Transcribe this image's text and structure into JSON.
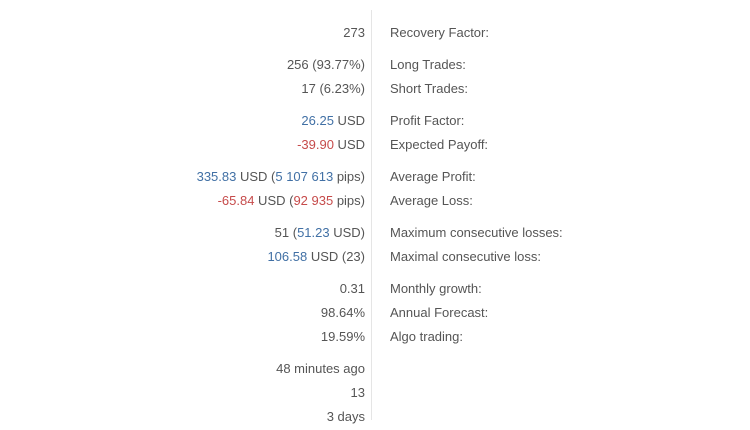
{
  "colors": {
    "text": "#555555",
    "positive": "#4170a5",
    "negative": "#c64b4b",
    "divider": "#e5e5e5",
    "background": "#ffffff"
  },
  "stats": {
    "groups": [
      {
        "rows": [
          {
            "label": "Recovery Factor:",
            "value_parts": [
              {
                "text": "273",
                "tone": "default"
              }
            ]
          }
        ]
      },
      {
        "rows": [
          {
            "label": "Long Trades:",
            "value_parts": [
              {
                "text": "256 (93.77%)",
                "tone": "default"
              }
            ]
          },
          {
            "label": "Short Trades:",
            "value_parts": [
              {
                "text": "17 (6.23%)",
                "tone": "default"
              }
            ]
          }
        ]
      },
      {
        "rows": [
          {
            "label": "Profit Factor:",
            "value_parts": [
              {
                "text": "26.25",
                "tone": "positive"
              },
              {
                "text": " USD",
                "tone": "default"
              }
            ]
          },
          {
            "label": "Expected Payoff:",
            "value_parts": [
              {
                "text": "-39.90",
                "tone": "negative"
              },
              {
                "text": " USD",
                "tone": "default"
              }
            ]
          }
        ]
      },
      {
        "rows": [
          {
            "label": "Average Profit:",
            "value_parts": [
              {
                "text": "335.83",
                "tone": "positive"
              },
              {
                "text": " USD (",
                "tone": "default"
              },
              {
                "text": "5 107 613",
                "tone": "positive"
              },
              {
                "text": " pips)",
                "tone": "default"
              }
            ]
          },
          {
            "label": "Average Loss:",
            "value_parts": [
              {
                "text": "-65.84",
                "tone": "negative"
              },
              {
                "text": " USD (",
                "tone": "default"
              },
              {
                "text": "92 935",
                "tone": "negative"
              },
              {
                "text": " pips)",
                "tone": "default"
              }
            ]
          }
        ]
      },
      {
        "rows": [
          {
            "label": "Maximum consecutive losses:",
            "value_parts": [
              {
                "text": "51 (",
                "tone": "default"
              },
              {
                "text": "51.23",
                "tone": "positive"
              },
              {
                "text": " USD)",
                "tone": "default"
              }
            ]
          },
          {
            "label": "Maximal consecutive loss:",
            "value_parts": [
              {
                "text": "106.58",
                "tone": "positive"
              },
              {
                "text": " USD (23)",
                "tone": "default"
              }
            ]
          }
        ]
      },
      {
        "rows": [
          {
            "label": "Monthly growth:",
            "value_parts": [
              {
                "text": "0.31",
                "tone": "default"
              }
            ]
          },
          {
            "label": "Annual Forecast:",
            "value_parts": [
              {
                "text": "98.64%",
                "tone": "default"
              }
            ]
          },
          {
            "label": "Algo trading:",
            "value_parts": [
              {
                "text": "19.59%",
                "tone": "default"
              }
            ]
          }
        ]
      },
      {
        "rows": [
          {
            "label": "",
            "value_parts": [
              {
                "text": "48 minutes ago",
                "tone": "default"
              }
            ]
          },
          {
            "label": "",
            "value_parts": [
              {
                "text": "13",
                "tone": "default"
              }
            ]
          },
          {
            "label": "",
            "value_parts": [
              {
                "text": "3 days",
                "tone": "default"
              }
            ]
          }
        ]
      }
    ]
  }
}
